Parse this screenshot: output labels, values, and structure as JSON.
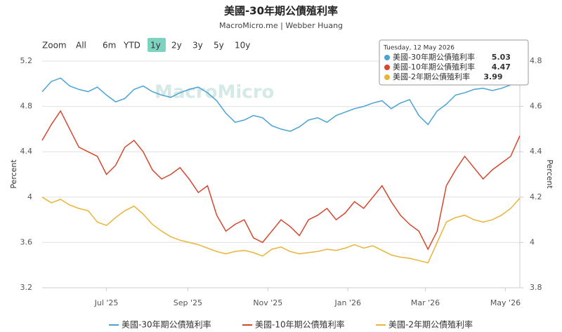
{
  "chart_data": {
    "type": "line",
    "title": "美國-30年期公債殖利率",
    "subtitle": "MacroMicro.me | Webber Huang",
    "watermark": "MacroMicro",
    "range_buttons": [
      "Zoom",
      "All",
      "6m",
      "YTD",
      "1y",
      "2y",
      "3y",
      "5y",
      "10y"
    ],
    "selected_range": "1y",
    "y_label": "Percent",
    "y2_label": "Percent",
    "x": [
      "2025-05-13",
      "2025-05-20",
      "2025-05-27",
      "2025-06-03",
      "2025-06-10",
      "2025-06-17",
      "2025-06-24",
      "2025-07-01",
      "2025-07-08",
      "2025-07-15",
      "2025-07-22",
      "2025-07-29",
      "2025-08-05",
      "2025-08-12",
      "2025-08-19",
      "2025-08-26",
      "2025-09-02",
      "2025-09-09",
      "2025-09-16",
      "2025-09-23",
      "2025-09-30",
      "2025-10-07",
      "2025-10-14",
      "2025-10-21",
      "2025-10-28",
      "2025-11-04",
      "2025-11-11",
      "2025-11-18",
      "2025-11-25",
      "2025-12-02",
      "2025-12-09",
      "2025-12-16",
      "2025-12-23",
      "2025-12-30",
      "2026-01-06",
      "2026-01-13",
      "2026-01-20",
      "2026-01-27",
      "2026-02-03",
      "2026-02-10",
      "2026-02-17",
      "2026-02-24",
      "2026-03-03",
      "2026-03-10",
      "2026-03-17",
      "2026-03-24",
      "2026-03-31",
      "2026-04-07",
      "2026-04-14",
      "2026-04-21",
      "2026-04-28",
      "2026-05-05",
      "2026-05-12"
    ],
    "xlim": [
      "2025-05-13",
      "2026-05-12"
    ],
    "xticks": [
      {
        "value": "2025-07-01",
        "label": "Jul '25"
      },
      {
        "value": "2025-09-01",
        "label": "Sep '25"
      },
      {
        "value": "2025-11-01",
        "label": "Nov '25"
      },
      {
        "value": "2026-01-01",
        "label": "Jan '26"
      },
      {
        "value": "2026-03-01",
        "label": "Mar '26"
      },
      {
        "value": "2026-05-01",
        "label": "May '26"
      }
    ],
    "ylim": [
      3.2,
      5.2
    ],
    "yticks": [
      3.2,
      3.6,
      4,
      4.4,
      4.8,
      5.2
    ],
    "y2lim": [
      3.8,
      4.8
    ],
    "y2ticks": [
      3.8,
      4,
      4.2,
      4.4,
      4.6,
      4.8
    ],
    "grid": true,
    "legend": "bottom",
    "series": [
      {
        "name": "美國-30年期公債殖利率",
        "color": "#4aa3d4",
        "axis": "y",
        "values": [
          4.93,
          5.02,
          5.05,
          4.98,
          4.95,
          4.93,
          4.97,
          4.9,
          4.84,
          4.87,
          4.95,
          4.98,
          4.93,
          4.9,
          4.88,
          4.92,
          4.95,
          4.97,
          4.92,
          4.85,
          4.74,
          4.66,
          4.68,
          4.72,
          4.7,
          4.63,
          4.6,
          4.58,
          4.62,
          4.68,
          4.7,
          4.66,
          4.72,
          4.75,
          4.78,
          4.8,
          4.83,
          4.85,
          4.78,
          4.83,
          4.86,
          4.72,
          4.64,
          4.76,
          4.82,
          4.9,
          4.92,
          4.95,
          4.96,
          4.94,
          4.96,
          4.99,
          5.03
        ]
      },
      {
        "name": "美國-10年期公債殖利率",
        "color": "#d4472e",
        "axis": "y2",
        "values": [
          4.45,
          4.52,
          4.58,
          4.5,
          4.42,
          4.4,
          4.38,
          4.3,
          4.34,
          4.42,
          4.45,
          4.4,
          4.32,
          4.28,
          4.3,
          4.33,
          4.28,
          4.22,
          4.25,
          4.12,
          4.05,
          4.08,
          4.1,
          4.02,
          4.0,
          4.05,
          4.1,
          4.07,
          4.03,
          4.1,
          4.12,
          4.15,
          4.1,
          4.13,
          4.18,
          4.15,
          4.2,
          4.25,
          4.18,
          4.12,
          4.08,
          4.05,
          3.97,
          4.05,
          4.25,
          4.32,
          4.38,
          4.33,
          4.28,
          4.32,
          4.35,
          4.38,
          4.47
        ]
      },
      {
        "name": "美國-2年期公債殖利率",
        "color": "#e8b43a",
        "axis": "y",
        "values": [
          4.0,
          3.95,
          3.98,
          3.93,
          3.9,
          3.88,
          3.78,
          3.75,
          3.82,
          3.88,
          3.92,
          3.85,
          3.76,
          3.7,
          3.65,
          3.62,
          3.6,
          3.58,
          3.55,
          3.52,
          3.5,
          3.52,
          3.53,
          3.51,
          3.48,
          3.54,
          3.56,
          3.52,
          3.5,
          3.51,
          3.52,
          3.54,
          3.53,
          3.55,
          3.58,
          3.55,
          3.57,
          3.53,
          3.49,
          3.47,
          3.46,
          3.44,
          3.42,
          3.6,
          3.78,
          3.82,
          3.84,
          3.8,
          3.78,
          3.8,
          3.84,
          3.9,
          3.99
        ]
      }
    ],
    "tooltip": {
      "date": "Tuesday, 12 May 2026"
    }
  }
}
